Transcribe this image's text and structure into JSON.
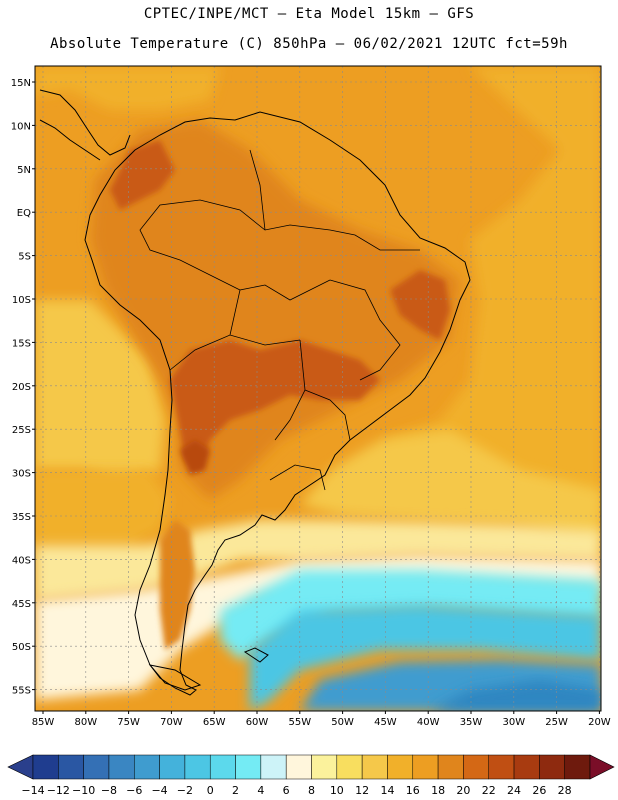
{
  "header": {
    "line1": "CPTEC/INPE/MCT –  Eta Model 15km – GFS",
    "line2": "Absolute Temperature (C) 850hPa – 06/02/2021 12UTC fct=59h"
  },
  "map": {
    "lat_labels": [
      "15N",
      "10N",
      "5N",
      "EQ",
      "5S",
      "10S",
      "15S",
      "20S",
      "25S",
      "30S",
      "35S",
      "40S",
      "45S",
      "50S",
      "55S"
    ],
    "lon_labels": [
      "85W",
      "80W",
      "75W",
      "70W",
      "65W",
      "60W",
      "55W",
      "50W",
      "45W",
      "40W",
      "35W",
      "30W",
      "25W",
      "20W"
    ],
    "palette": {
      "hot_core": "#c95a12",
      "warm": "#e0851c",
      "orange": "#ed9e22",
      "gold": "#f1b02a",
      "yellow": "#f5c84a",
      "pale_yellow": "#fbe89a",
      "cream": "#fff6dc",
      "light_cyan": "#cdf3f8",
      "aqua": "#72e9f2",
      "cyan": "#56d8e8",
      "teal": "#43bedb",
      "blue": "#3a9fcf",
      "deep_blue": "#2f86c1",
      "grid": "#8a8a8a",
      "coast": "#000000"
    }
  },
  "colorbar": {
    "labels": [
      "-14",
      "-12",
      "-10",
      "-8",
      "-6",
      "-4",
      "-2",
      "0",
      "2",
      "4",
      "6",
      "8",
      "10",
      "12",
      "14",
      "16",
      "18",
      "20",
      "22",
      "24",
      "26",
      "28"
    ],
    "colors": [
      "#1f3d8f",
      "#2a57a3",
      "#3470b5",
      "#3a86c2",
      "#3f9ccf",
      "#44b2db",
      "#4cc6e4",
      "#5cd9ec",
      "#74ebf4",
      "#cdf3f8",
      "#fff6dc",
      "#fbf29c",
      "#f8de5f",
      "#f5c84a",
      "#f1b02a",
      "#ed9e22",
      "#e0851c",
      "#d46815",
      "#c04f13",
      "#a83b10",
      "#8e2a0f",
      "#6e1a0d"
    ],
    "under_color": "#2a3f8c",
    "over_color": "#7a0e28"
  }
}
